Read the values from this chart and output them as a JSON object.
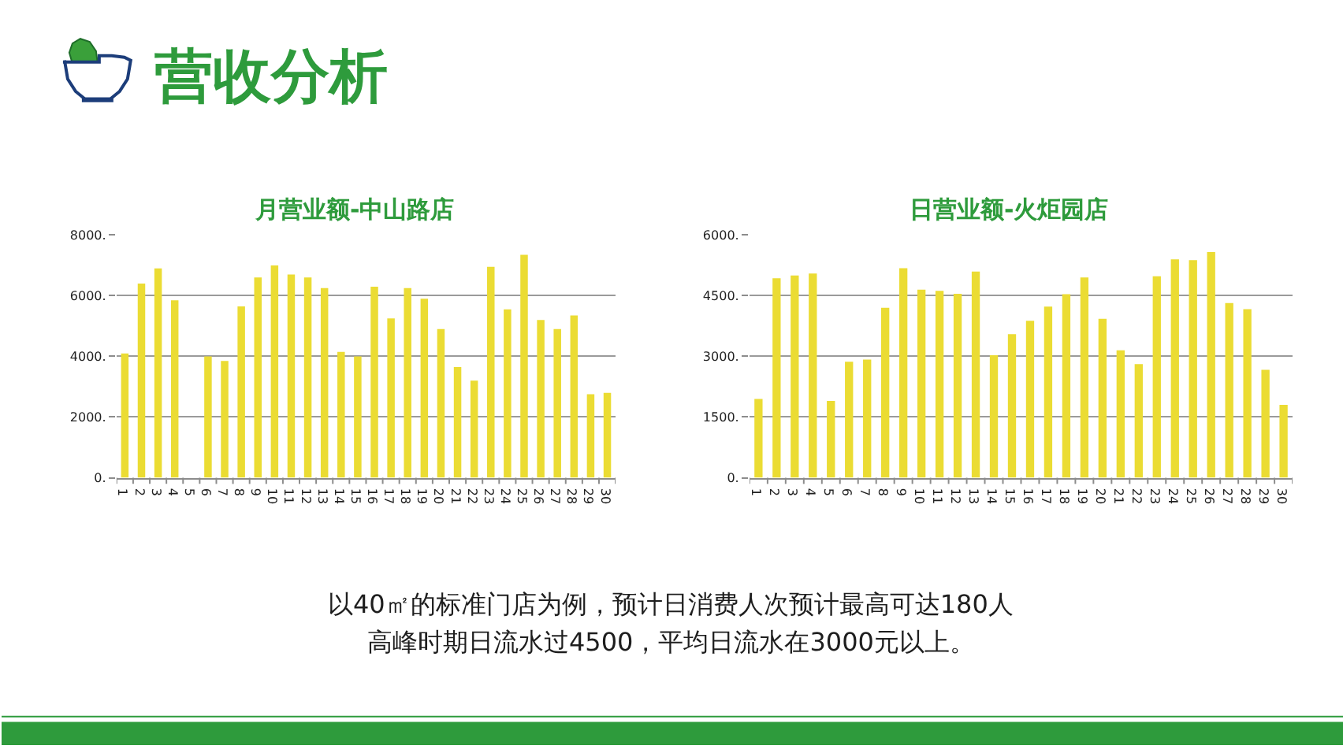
{
  "chart_data": [
    {
      "type": "other",
      "title": "营收分析"
    },
    {
      "type": "bar",
      "title": "月营业额-中山路店",
      "categories": [
        "1",
        "2",
        "3",
        "4",
        "5",
        "6",
        "7",
        "8",
        "9",
        "10",
        "11",
        "12",
        "13",
        "14",
        "15",
        "16",
        "17",
        "18",
        "19",
        "20",
        "21",
        "22",
        "23",
        "24",
        "25",
        "26",
        "27",
        "28",
        "29",
        "30"
      ],
      "values": [
        4100,
        6400,
        6900,
        5850,
        null,
        4000,
        3850,
        5650,
        6600,
        7000,
        6700,
        6600,
        6250,
        4150,
        4000,
        6300,
        5250,
        6250,
        5900,
        4900,
        3650,
        3200,
        6950,
        5550,
        7350,
        5200,
        4900,
        5350,
        2750,
        2800
      ],
      "color": "#ebdc33",
      "ylim": [
        0,
        8000
      ],
      "yticks": [
        {
          "value": 0,
          "label": "0."
        },
        {
          "value": 2000,
          "label": "2000."
        },
        {
          "value": 4000,
          "label": "4000."
        },
        {
          "value": 6000,
          "label": "6000."
        },
        {
          "value": 8000,
          "label": "8000."
        }
      ],
      "grid": "y"
    },
    {
      "type": "bar",
      "title": "日营业额-火炬园店",
      "categories": [
        "1",
        "2",
        "3",
        "4",
        "5",
        "6",
        "7",
        "8",
        "9",
        "10",
        "11",
        "12",
        "13",
        "14",
        "15",
        "16",
        "17",
        "18",
        "19",
        "20",
        "21",
        "22",
        "23",
        "24",
        "25",
        "26",
        "27",
        "28",
        "29",
        "30"
      ],
      "values": [
        1950,
        4930,
        5000,
        5050,
        1900,
        2870,
        2920,
        4200,
        5180,
        4650,
        4620,
        4550,
        5100,
        3030,
        3550,
        3880,
        4230,
        4540,
        4950,
        3930,
        3150,
        2810,
        4980,
        5400,
        5380,
        5580,
        4320,
        4170,
        2670,
        1800
      ],
      "color": "#ebdc33",
      "ylim": [
        0,
        6000
      ],
      "yticks": [
        {
          "value": 0,
          "label": "0."
        },
        {
          "value": 1500,
          "label": "1500."
        },
        {
          "value": 3000,
          "label": "3000."
        },
        {
          "value": 4500,
          "label": "4500."
        },
        {
          "value": 6000,
          "label": "6000."
        }
      ],
      "grid": "y"
    },
    {
      "type": "other",
      "annotations": [
        "以40㎡的标准门店为例，预计日消费人次预计最高可达180人",
        "高峰时期日流水过4500，平均日流水在3000元以上。"
      ]
    }
  ]
}
